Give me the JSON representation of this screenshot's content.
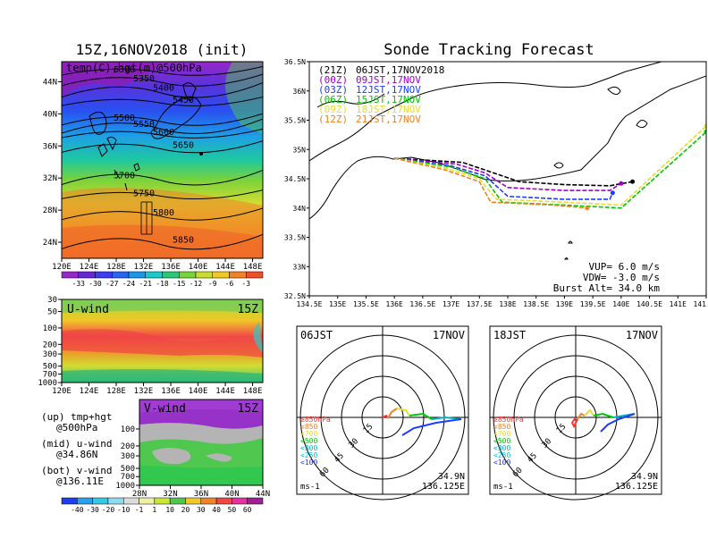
{
  "chart_data": [
    {
      "type": "heatmap",
      "title": "15Z,16NOV2018 (init)",
      "label": "temp(C),hgt(m)@500hPa",
      "x_ticks": [
        "120E",
        "124E",
        "128E",
        "132E",
        "136E",
        "140E",
        "144E",
        "148E"
      ],
      "y_ticks": [
        "24N",
        "28N",
        "32N",
        "36N",
        "40N",
        "44N"
      ],
      "contours": [
        {
          "value": "5300",
          "lat": 45.5
        },
        {
          "value": "5350",
          "lat": 44.4
        },
        {
          "value": "5400",
          "lat": 43.2
        },
        {
          "value": "5450",
          "lat": 41.7
        },
        {
          "value": "5500",
          "lat": 39.5
        },
        {
          "value": "5550",
          "lat": 38.7
        },
        {
          "value": "5600",
          "lat": 37.7
        },
        {
          "value": "5650",
          "lat": 36.1
        },
        {
          "value": "5700",
          "lat": 32.3
        },
        {
          "value": "5750",
          "lat": 30.1
        },
        {
          "value": "5800",
          "lat": 27.7
        },
        {
          "value": "5850",
          "lat": 24.3
        }
      ],
      "colorbar": [
        "-33",
        "-30",
        "-27",
        "-24",
        "-21",
        "-18",
        "-15",
        "-12",
        "-9",
        "-6",
        "-3"
      ]
    },
    {
      "type": "heatmap",
      "label": "U-wind",
      "time": "15Z",
      "x_ticks": [
        "120E",
        "124E",
        "128E",
        "132E",
        "136E",
        "140E",
        "144E",
        "148E"
      ],
      "y_ticks": [
        "30",
        "50",
        "100",
        "200",
        "300",
        "500",
        "700",
        "1000"
      ]
    },
    {
      "type": "heatmap",
      "label": "V-wind",
      "time": "15Z",
      "x_ticks": [
        "28N",
        "32N",
        "36N",
        "40N",
        "44N"
      ],
      "y_ticks": [
        "100",
        "200",
        "300",
        "500",
        "700",
        "1000"
      ],
      "colorbar": [
        "-40",
        "-30",
        "-20",
        "-10",
        "-1",
        "1",
        "10",
        "20",
        "30",
        "40",
        "50",
        "60"
      ]
    },
    {
      "type": "line",
      "title": "Sonde Tracking Forecast",
      "x_ticks": [
        "134.5E",
        "135E",
        "135.5E",
        "136E",
        "136.5E",
        "137E",
        "137.5E",
        "138E",
        "138.5E",
        "139E",
        "139.5E",
        "140E",
        "140.5E",
        "141E",
        "141.5E"
      ],
      "y_ticks": [
        "32.5N",
        "33N",
        "33.5N",
        "34N",
        "34.5N",
        "35N",
        "35.5N",
        "36N",
        "36.5N"
      ],
      "xlim": [
        134.5,
        141.5
      ],
      "ylim": [
        32.5,
        36.5
      ],
      "series": [
        {
          "name": "(21Z)",
          "label": "06JST,17NOV2018",
          "color": "#000000",
          "points": [
            [
              136.0,
              34.85
            ],
            [
              137.2,
              34.78
            ],
            [
              137.6,
              34.65
            ],
            [
              138.2,
              34.45
            ],
            [
              139.0,
              34.4
            ],
            [
              139.8,
              34.38
            ],
            [
              140.2,
              34.45
            ]
          ]
        },
        {
          "name": "(00Z)",
          "label": "09JST,17NOV",
          "color": "#a000c8",
          "points": [
            [
              136.0,
              34.85
            ],
            [
              137.1,
              34.75
            ],
            [
              137.6,
              34.6
            ],
            [
              138.0,
              34.35
            ],
            [
              139.0,
              34.3
            ],
            [
              139.8,
              34.3
            ],
            [
              140.0,
              34.42
            ]
          ]
        },
        {
          "name": "(03Z)",
          "label": "12JST,17NOV",
          "color": "#1e3cff",
          "points": [
            [
              136.0,
              34.85
            ],
            [
              137.0,
              34.72
            ],
            [
              137.6,
              34.55
            ],
            [
              138.0,
              34.2
            ],
            [
              139.0,
              34.15
            ],
            [
              139.8,
              34.15
            ],
            [
              139.85,
              34.26
            ]
          ]
        },
        {
          "name": "(06Z)",
          "label": "15JST,17NOV",
          "color": "#00c800",
          "points": [
            [
              136.0,
              34.85
            ],
            [
              137.0,
              34.7
            ],
            [
              137.6,
              34.5
            ],
            [
              137.9,
              34.1
            ],
            [
              139.0,
              34.05
            ],
            [
              140.0,
              34.0
            ],
            [
              141.5,
              35.3
            ]
          ]
        },
        {
          "name": "(09Z)",
          "label": "18JST,17NOV",
          "color": "#e6dc32",
          "points": [
            [
              136.0,
              34.85
            ],
            [
              136.9,
              34.68
            ],
            [
              137.5,
              34.5
            ],
            [
              137.8,
              34.15
            ],
            [
              139.0,
              34.1
            ],
            [
              140.0,
              34.05
            ],
            [
              141.5,
              35.4
            ]
          ]
        },
        {
          "name": "(12Z)",
          "label": "21JST,17NOV",
          "color": "#f08228",
          "points": [
            [
              136.0,
              34.85
            ],
            [
              136.9,
              34.65
            ],
            [
              137.5,
              34.45
            ],
            [
              137.7,
              34.1
            ],
            [
              138.8,
              34.05
            ],
            [
              139.4,
              34.0
            ]
          ]
        }
      ],
      "params": {
        "vup": "VUP= 6.0 m/s",
        "vdw": "VDW= -3.0 m/s",
        "burst": "Burst Alt= 34.0 km"
      }
    },
    {
      "type": "scatter",
      "title": "06JST",
      "date": "17NOV",
      "ring_labels": [
        "15",
        "30",
        "45",
        "60"
      ],
      "unit": "ms-1",
      "location": [
        "34.9N",
        "136.125E"
      ],
      "legend": [
        {
          "label": "≥850hPa",
          "color": "#fa3c3c"
        },
        {
          "label": "<850",
          "color": "#f08228"
        },
        {
          "label": "<700",
          "color": "#e6dc32"
        },
        {
          "label": "<500",
          "color": "#00c800"
        },
        {
          "label": "<300",
          "color": "#00b4c8"
        },
        {
          "label": "<250",
          "color": "#00c8e6"
        },
        {
          "label": "<100",
          "color": "#1e3cff"
        }
      ]
    },
    {
      "type": "scatter",
      "title": "18JST",
      "date": "17NOV",
      "ring_labels": [
        "15",
        "30",
        "45",
        "60"
      ],
      "unit": "ms-1",
      "location": [
        "34.9N",
        "136.125E"
      ],
      "legend": [
        {
          "label": "≥850hPa",
          "color": "#fa3c3c"
        },
        {
          "label": "<850",
          "color": "#f08228"
        },
        {
          "label": "<700",
          "color": "#e6dc32"
        },
        {
          "label": "<500",
          "color": "#00c800"
        },
        {
          "label": "<300",
          "color": "#00b4c8"
        },
        {
          "label": "<250",
          "color": "#00c8e6"
        },
        {
          "label": "<100",
          "color": "#1e3cff"
        }
      ]
    }
  ],
  "notes": {
    "up": [
      "(up) tmp+hgt",
      "@500hPa"
    ],
    "mid": [
      "(mid) u-wind",
      "@34.86N"
    ],
    "bot": [
      "(bot) v-wind",
      "@136.11E"
    ]
  }
}
